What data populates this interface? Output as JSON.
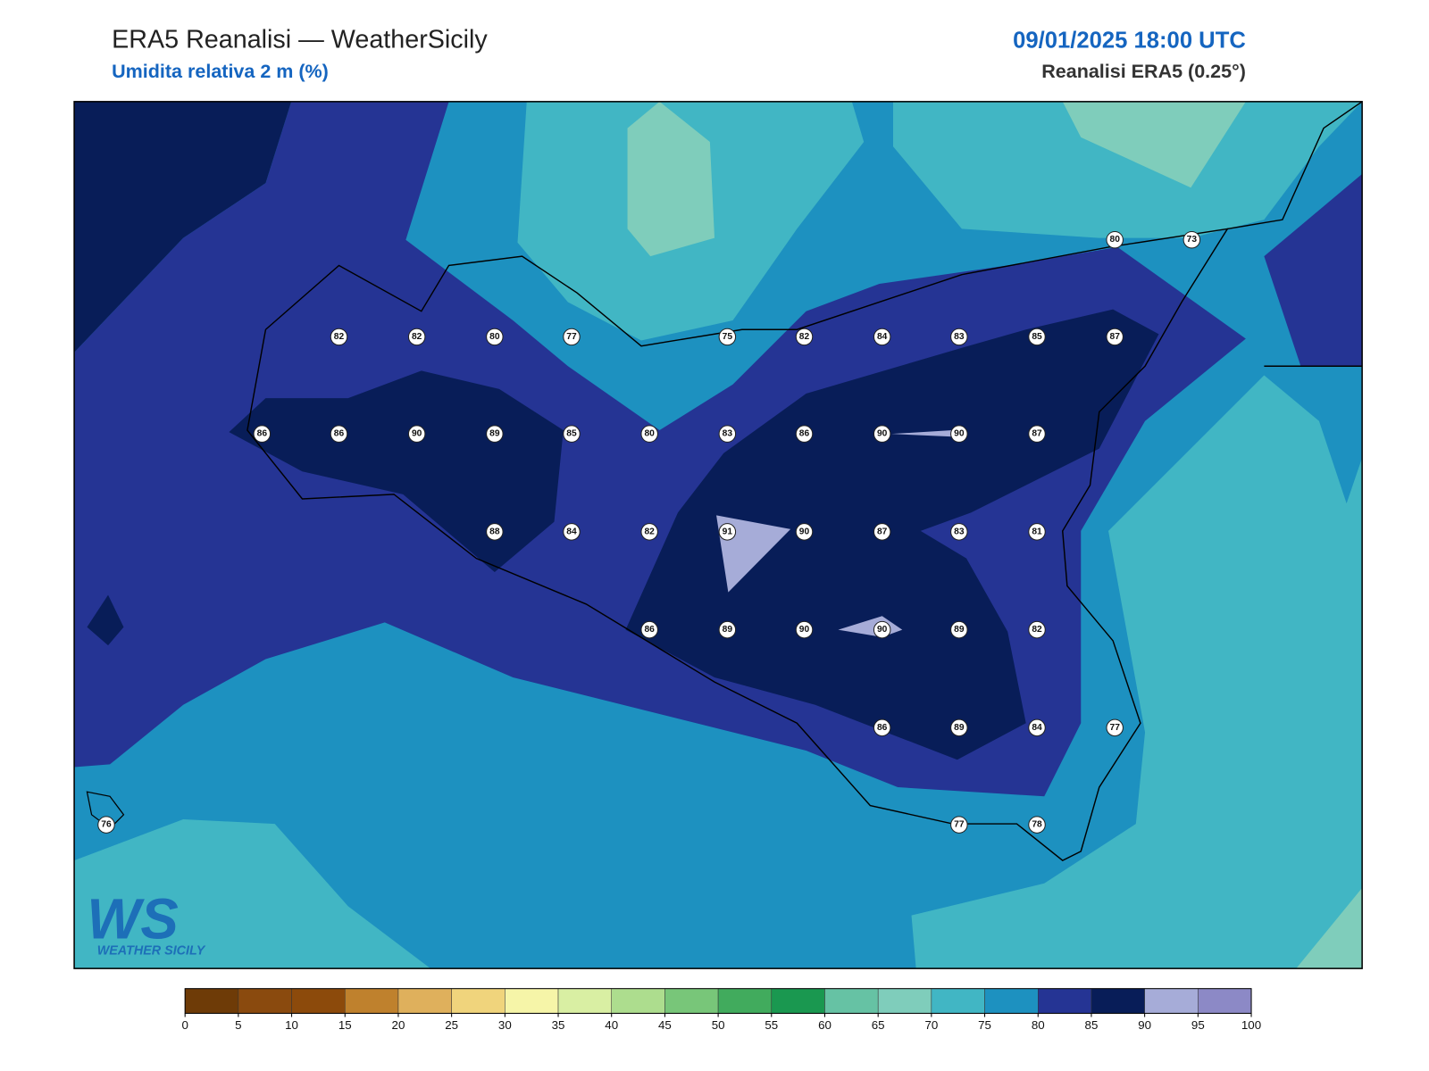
{
  "header": {
    "title": "ERA5 Reanalisi — WeatherSicily",
    "subtitle": "Umidita relativa 2 m (%)",
    "datetime": "09/01/2025 18:00 UTC",
    "source": "Reanalisi ERA5 (0.25°)"
  },
  "stations": [
    82,
    82,
    80,
    77,
    75,
    82,
    84,
    83,
    85,
    87,
    80,
    73,
    86,
    86,
    90,
    89,
    85,
    80,
    83,
    86,
    90,
    90,
    87,
    88,
    84,
    82,
    91,
    90,
    87,
    83,
    81,
    86,
    89,
    90,
    90,
    89,
    82,
    86,
    89,
    84,
    77,
    76,
    77,
    78
  ],
  "colorbar": {
    "ticks": [
      0,
      5,
      10,
      15,
      20,
      25,
      30,
      35,
      40,
      45,
      50,
      55,
      60,
      65,
      70,
      75,
      80,
      85,
      90,
      95,
      100
    ],
    "colors": [
      "#6e3b07",
      "#8a4a0e",
      "#8c4a0b",
      "#bf812d",
      "#dfb05c",
      "#f0d47c",
      "#f6f5a8",
      "#d9efa3",
      "#addd8e",
      "#78c679",
      "#41ab5d",
      "#1a9850",
      "#66c2a4",
      "#7fcdbb",
      "#41b6c4",
      "#1d91c0",
      "#253494",
      "#081d58",
      "#a6acd8",
      "#8c89c6"
    ]
  },
  "logo": {
    "mark": "WS",
    "name": "WEATHER SICILY"
  }
}
